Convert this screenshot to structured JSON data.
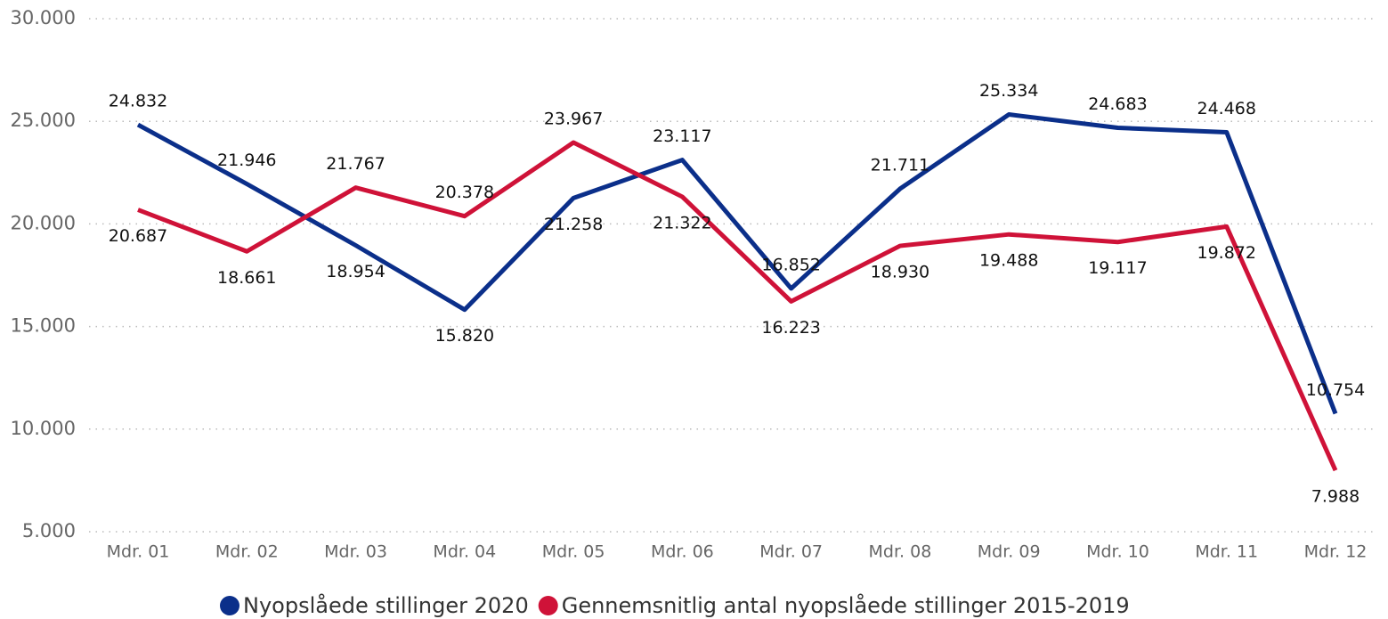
{
  "chart_data": {
    "type": "line",
    "categories": [
      "Mdr. 01",
      "Mdr. 02",
      "Mdr. 03",
      "Mdr. 04",
      "Mdr. 05",
      "Mdr. 06",
      "Mdr. 07",
      "Mdr. 08",
      "Mdr. 09",
      "Mdr. 10",
      "Mdr. 11",
      "Mdr. 12"
    ],
    "series": [
      {
        "name": "Nyopslåede stillinger 2020",
        "color": "#0b2f8a",
        "values": [
          24832,
          21946,
          18954,
          15820,
          21258,
          23117,
          16852,
          21711,
          25334,
          24683,
          24468,
          10754
        ],
        "value_labels": [
          "24.832",
          "21.946",
          "18.954",
          "15.820",
          "21.258",
          "23.117",
          "16.852",
          "21.711",
          "25.334",
          "24.683",
          "24.468",
          "10.754"
        ]
      },
      {
        "name": "Gennemsnitlig antal nyopslåede stillinger 2015-2019",
        "color": "#cf1238",
        "values": [
          20687,
          18661,
          21767,
          20378,
          23967,
          21322,
          16223,
          18930,
          19488,
          19117,
          19872,
          7988
        ],
        "value_labels": [
          "20.687",
          "18.661",
          "21.767",
          "20.378",
          "23.967",
          "21.322",
          "16.223",
          "18.930",
          "19.488",
          "19.117",
          "19.872",
          "7.988"
        ]
      }
    ],
    "ylim": [
      5000,
      30000
    ],
    "yticks": [
      {
        "value": 5000,
        "label": "5.000"
      },
      {
        "value": 10000,
        "label": "10.000"
      },
      {
        "value": 15000,
        "label": "15.000"
      },
      {
        "value": 20000,
        "label": "20.000"
      },
      {
        "value": 25000,
        "label": "25.000"
      },
      {
        "value": 30000,
        "label": "30.000"
      }
    ],
    "grid": true,
    "legend": "bottom"
  }
}
